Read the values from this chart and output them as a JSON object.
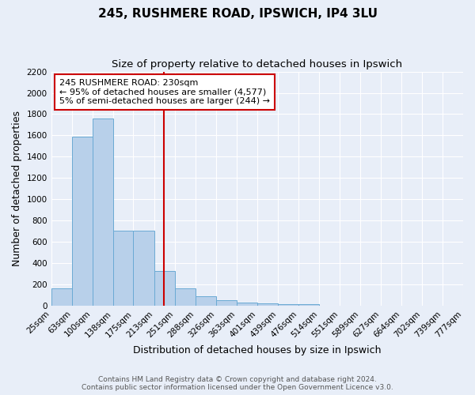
{
  "title": "245, RUSHMERE ROAD, IPSWICH, IP4 3LU",
  "subtitle": "Size of property relative to detached houses in Ipswich",
  "xlabel": "Distribution of detached houses by size in Ipswich",
  "ylabel": "Number of detached properties",
  "footer_line1": "Contains HM Land Registry data © Crown copyright and database right 2024.",
  "footer_line2": "Contains public sector information licensed under the Open Government Licence v3.0.",
  "bin_edges": [
    25,
    63,
    100,
    138,
    175,
    213,
    251,
    288,
    326,
    363,
    401,
    439,
    476,
    514,
    551,
    589,
    627,
    664,
    702,
    739,
    777
  ],
  "bar_heights": [
    160,
    1590,
    1760,
    705,
    705,
    325,
    160,
    85,
    50,
    30,
    22,
    18,
    15,
    0,
    0,
    0,
    0,
    0,
    0,
    0
  ],
  "bar_color": "#b8d0ea",
  "bar_edge_color": "#6aaad4",
  "red_line_x": 230,
  "red_line_color": "#cc0000",
  "annotation_text": "245 RUSHMERE ROAD: 230sqm\n← 95% of detached houses are smaller (4,577)\n5% of semi-detached houses are larger (244) →",
  "annotation_box_color": "#ffffff",
  "annotation_box_edge_color": "#cc0000",
  "ylim": [
    0,
    2200
  ],
  "yticks": [
    0,
    200,
    400,
    600,
    800,
    1000,
    1200,
    1400,
    1600,
    1800,
    2000,
    2200
  ],
  "background_color": "#e8eef8",
  "grid_color": "#ffffff",
  "title_fontsize": 11,
  "subtitle_fontsize": 9.5,
  "xlabel_fontsize": 9,
  "ylabel_fontsize": 9,
  "tick_fontsize": 7.5,
  "annotation_fontsize": 8,
  "footer_fontsize": 6.5,
  "footer_color": "#555555"
}
